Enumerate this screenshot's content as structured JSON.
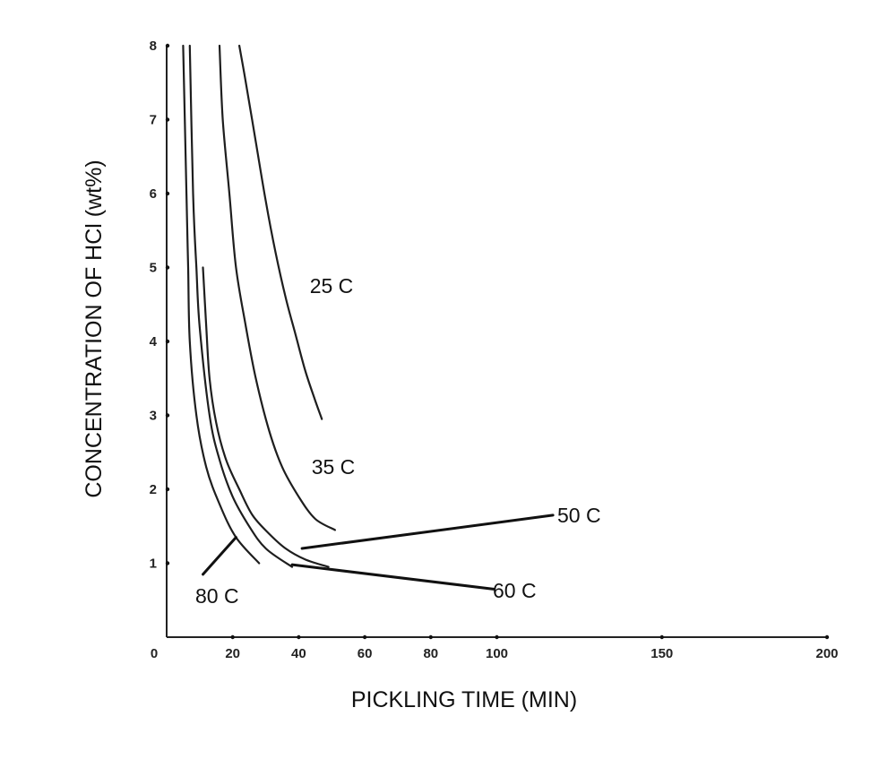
{
  "chart_data": {
    "type": "line",
    "xlabel": "PICKLING TIME (MIN)",
    "ylabel": "CONCENTRATION OF HCl (wt%)",
    "xlim": [
      0,
      200
    ],
    "ylim": [
      0,
      8
    ],
    "x_ticks": [
      0,
      20,
      40,
      60,
      80,
      100,
      150,
      200
    ],
    "x_tick_labels": [
      "0",
      "20",
      "40",
      "60",
      "80",
      "100",
      "150",
      "200"
    ],
    "y_ticks": [
      1,
      2,
      3,
      4,
      5,
      6,
      7,
      8
    ],
    "y_tick_labels": [
      "1",
      "2",
      "3",
      "4",
      "5",
      "6",
      "7",
      "8"
    ],
    "grid": false,
    "legend": "none",
    "series": [
      {
        "name": "25 C",
        "x": [
          22,
          24,
          27,
          30,
          33,
          36,
          39,
          42,
          45,
          47
        ],
        "y": [
          8,
          7.5,
          6.7,
          5.9,
          5.2,
          4.6,
          4.1,
          3.6,
          3.2,
          2.95
        ]
      },
      {
        "name": "35 C",
        "x": [
          16,
          17,
          19,
          21,
          24,
          27,
          31,
          35,
          40,
          45,
          51
        ],
        "y": [
          8,
          7.0,
          6.0,
          5.0,
          4.2,
          3.5,
          2.8,
          2.3,
          1.9,
          1.6,
          1.45
        ]
      },
      {
        "name": "50 C",
        "x": [
          11,
          12,
          13,
          15,
          18,
          22,
          26,
          31,
          36,
          42,
          49
        ],
        "y": [
          5.0,
          4.2,
          3.5,
          2.9,
          2.4,
          2.0,
          1.65,
          1.4,
          1.2,
          1.05,
          0.95
        ]
      },
      {
        "name": "60 C",
        "x": [
          7,
          8,
          9,
          10,
          13,
          16,
          20,
          25,
          30,
          38
        ],
        "y": [
          8,
          6.0,
          5.0,
          4.2,
          3.0,
          2.4,
          1.9,
          1.5,
          1.2,
          0.95
        ]
      },
      {
        "name": "80 C",
        "x": [
          5,
          6,
          6.5,
          7,
          9,
          12,
          16,
          21,
          28
        ],
        "y": [
          8,
          6.0,
          5.0,
          4.0,
          3.0,
          2.3,
          1.8,
          1.35,
          1.0
        ]
      }
    ],
    "annotations": [
      {
        "text": "25 C",
        "series": "25 C"
      },
      {
        "text": "35 C",
        "series": "35 C"
      },
      {
        "text": "50 C",
        "series": "50 C",
        "leader_from": [
          41,
          1.2
        ],
        "leader_to": [
          117,
          1.65
        ]
      },
      {
        "text": "60 C",
        "series": "60 C",
        "leader_from": [
          38,
          0.98
        ],
        "leader_to": [
          99,
          0.65
        ]
      },
      {
        "text": "80 C",
        "series": "80 C",
        "leader_from": [
          21,
          1.35
        ],
        "leader_to": [
          11,
          0.85
        ]
      }
    ]
  }
}
